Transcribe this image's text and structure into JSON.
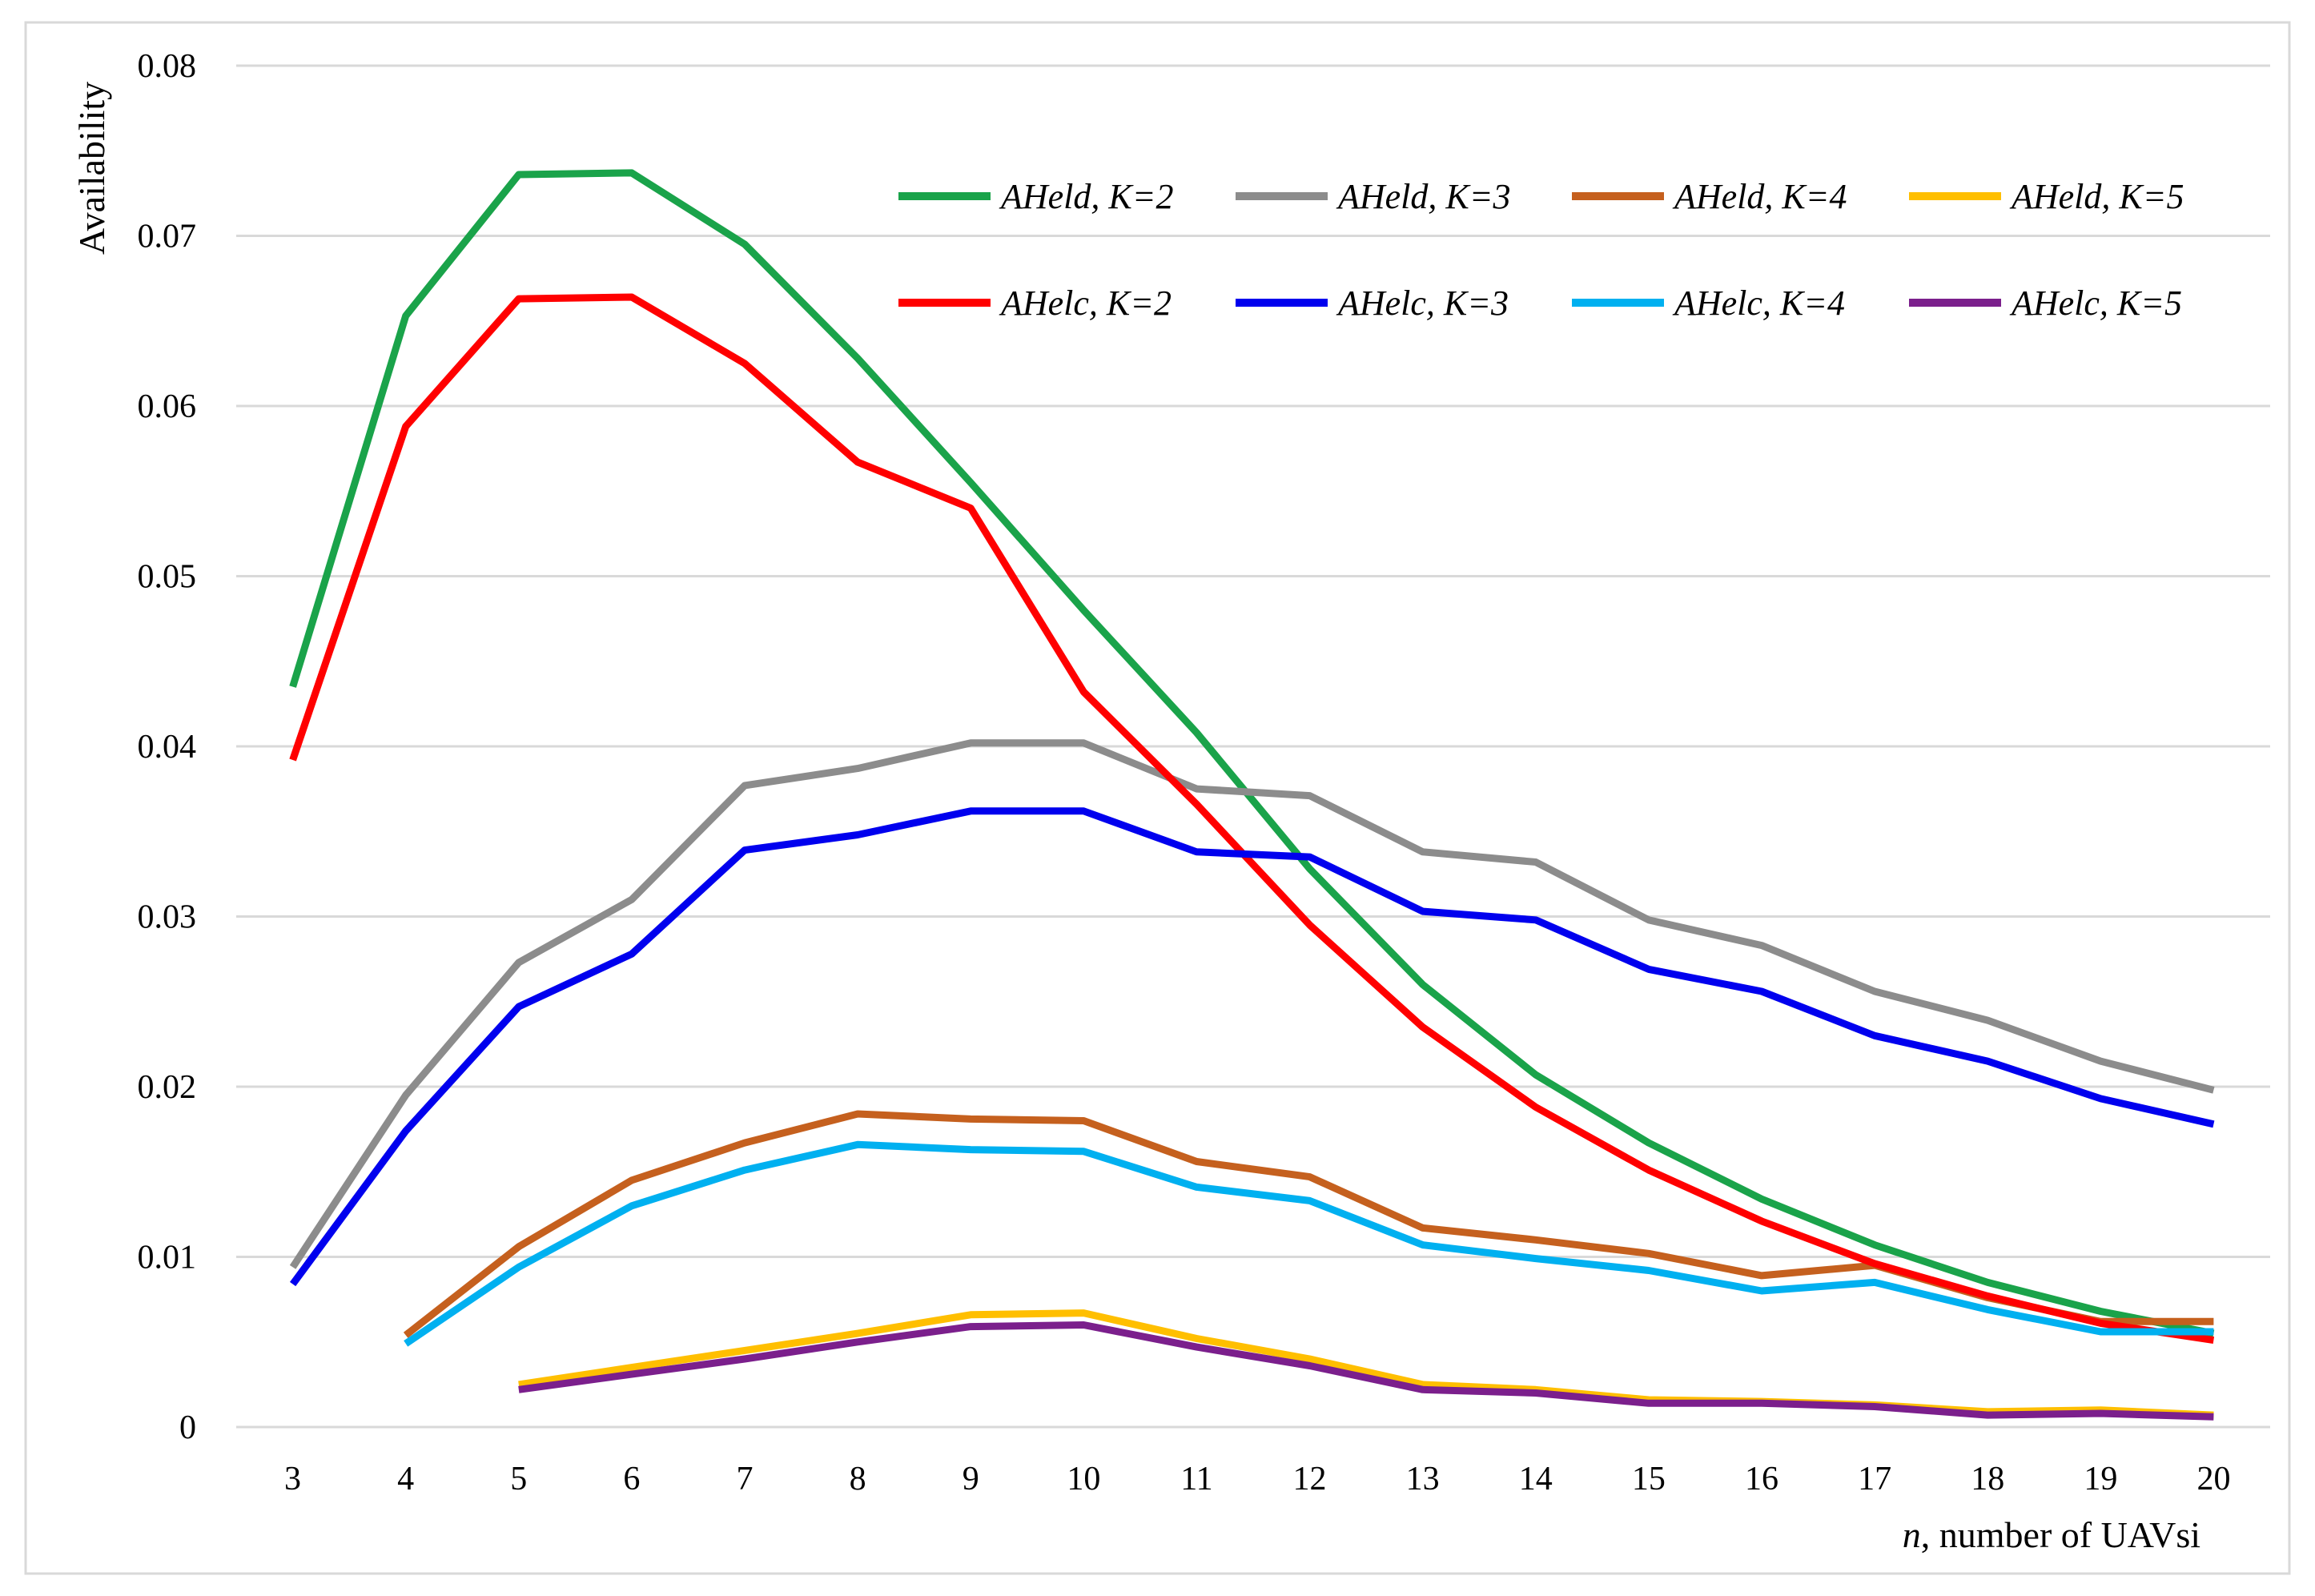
{
  "chart_data": {
    "type": "line",
    "title": "",
    "ylabel": "Availability",
    "xlabel_var": "n",
    "xlabel_rest": ", number of UAVsi",
    "ylim": [
      0,
      0.08
    ],
    "yticks": [
      0,
      0.01,
      0.02,
      0.03,
      0.04,
      0.05,
      0.06,
      0.07,
      0.08
    ],
    "ytick_labels": [
      "0",
      "0.01",
      "0.02",
      "0.03",
      "0.04",
      "0.05",
      "0.06",
      "0.07",
      "0.08"
    ],
    "categories": [
      "3",
      "4",
      "5",
      "6",
      "7",
      "8",
      "9",
      "10",
      "11",
      "12",
      "13",
      "14",
      "15",
      "16",
      "17",
      "18",
      "19",
      "20"
    ],
    "grid": "horizontal",
    "legend_position": "top-right",
    "series": [
      {
        "name": "AHeld, K=2",
        "color": "#1aa34a",
        "values": [
          0.0435,
          0.0653,
          0.0736,
          0.0737,
          0.0695,
          0.0628,
          0.0555,
          0.048,
          0.0408,
          0.0328,
          0.026,
          0.0207,
          0.0167,
          0.0134,
          0.0107,
          0.0085,
          0.0068,
          0.0055
        ]
      },
      {
        "name": "AHeld, K=3",
        "color": "#8c8c8c",
        "values": [
          0.0094,
          0.0195,
          0.0273,
          0.031,
          0.0377,
          0.0387,
          0.0402,
          0.0402,
          0.0375,
          0.0371,
          0.0338,
          0.0332,
          0.0298,
          0.0283,
          0.0256,
          0.0239,
          0.0215,
          0.0198
        ]
      },
      {
        "name": "AHeld, K=4",
        "color": "#c5601e",
        "values": [
          null,
          0.0054,
          0.0106,
          0.0145,
          0.0167,
          0.0184,
          0.0181,
          0.018,
          0.0156,
          0.0147,
          0.0117,
          0.011,
          0.0102,
          0.0089,
          0.0095,
          0.0076,
          0.0062,
          0.0062
        ]
      },
      {
        "name": "AHeld, K=5",
        "color": "#ffbf00",
        "values": [
          null,
          null,
          0.0025,
          0.0035,
          0.0045,
          0.0055,
          0.0066,
          0.0067,
          0.0052,
          0.004,
          0.0025,
          0.0022,
          0.0016,
          0.0015,
          0.0013,
          0.0009,
          0.001,
          0.0007
        ]
      },
      {
        "name": "AHelc, K=2",
        "color": "#ff0000",
        "values": [
          0.0392,
          0.0588,
          0.0663,
          0.0664,
          0.0625,
          0.0567,
          0.054,
          0.0432,
          0.0366,
          0.0295,
          0.0235,
          0.0188,
          0.0151,
          0.0121,
          0.0096,
          0.0077,
          0.0061,
          0.0051
        ]
      },
      {
        "name": "AHelc, K=3",
        "color": "#0000ee",
        "values": [
          0.0084,
          0.0174,
          0.0247,
          0.0278,
          0.0339,
          0.0348,
          0.0362,
          0.0362,
          0.0338,
          0.0335,
          0.0303,
          0.0298,
          0.0269,
          0.0256,
          0.023,
          0.0215,
          0.0193,
          0.0178
        ]
      },
      {
        "name": "AHelc, K=4",
        "color": "#00b0f0",
        "values": [
          null,
          0.0049,
          0.0094,
          0.013,
          0.0151,
          0.0166,
          0.0163,
          0.0162,
          0.0141,
          0.0133,
          0.0107,
          0.0099,
          0.0092,
          0.008,
          0.0085,
          0.0069,
          0.0056,
          0.0056
        ]
      },
      {
        "name": "AHelc, K=5",
        "color": "#7b1f8c",
        "values": [
          null,
          null,
          0.0022,
          0.0031,
          0.004,
          0.005,
          0.0059,
          0.006,
          0.0047,
          0.0036,
          0.0022,
          0.002,
          0.0014,
          0.0014,
          0.0012,
          0.0007,
          0.0008,
          0.0006
        ]
      }
    ]
  }
}
